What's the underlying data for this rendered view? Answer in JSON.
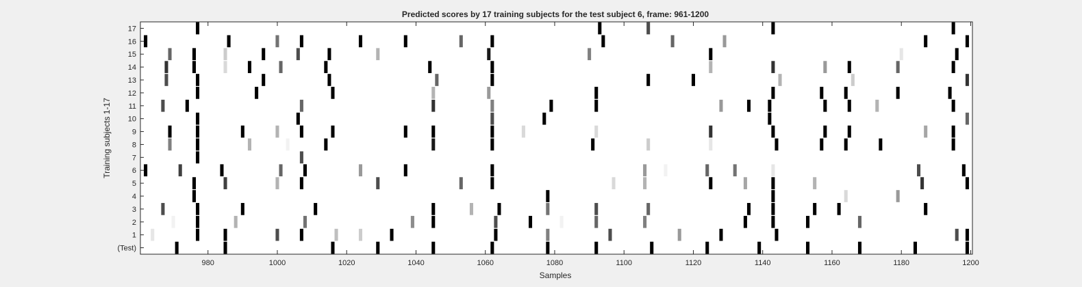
{
  "chart_data": {
    "type": "heatmap",
    "title": "Predicted scores by 17 training subjects for the test subject 6, frame: 961-1200",
    "xlabel": "Samples",
    "ylabel": "Training subjects 1-17",
    "xlim": [
      961,
      1200
    ],
    "xticks": [
      980,
      1000,
      1020,
      1040,
      1060,
      1080,
      1100,
      1120,
      1140,
      1160,
      1180,
      1200
    ],
    "rows": [
      "(Test)",
      "1",
      "2",
      "3",
      "4",
      "5",
      "6",
      "7",
      "8",
      "9",
      "10",
      "11",
      "12",
      "13",
      "14",
      "15",
      "16",
      "17"
    ],
    "colormap": "grayscale (white = 0, black = 1)",
    "grid": false,
    "marks": [
      [
        [
          971,
          1
        ],
        [
          985,
          1
        ],
        [
          1016,
          1
        ],
        [
          1029,
          1
        ],
        [
          1045,
          1
        ],
        [
          1062,
          1
        ],
        [
          1078,
          1
        ],
        [
          1092,
          1
        ],
        [
          1108,
          1
        ],
        [
          1124,
          1
        ],
        [
          1139,
          1
        ],
        [
          1153,
          1
        ],
        [
          1168,
          1
        ],
        [
          1184,
          1
        ],
        [
          1199,
          1
        ]
      ],
      [
        [
          964,
          0.1
        ],
        [
          977,
          1
        ],
        [
          985,
          1
        ],
        [
          1000,
          0.7
        ],
        [
          1007,
          1
        ],
        [
          1017,
          0.25
        ],
        [
          1024,
          0.2
        ],
        [
          1033,
          1
        ],
        [
          1063,
          1
        ],
        [
          1078,
          0.5
        ],
        [
          1096,
          0.7
        ],
        [
          1116,
          0.4
        ],
        [
          1128,
          1
        ],
        [
          1144,
          1
        ],
        [
          1196,
          0.7
        ],
        [
          1199,
          1
        ]
      ],
      [
        [
          970,
          0.05
        ],
        [
          977,
          1
        ],
        [
          988,
          0.3
        ],
        [
          1008,
          0.55
        ],
        [
          1039,
          0.45
        ],
        [
          1045,
          1
        ],
        [
          1063,
          0.7
        ],
        [
          1073,
          1
        ],
        [
          1082,
          0.05
        ],
        [
          1092,
          0.6
        ],
        [
          1106,
          0.5
        ],
        [
          1135,
          1
        ],
        [
          1143,
          1
        ],
        [
          1153,
          1
        ],
        [
          1168,
          0.6
        ]
      ],
      [
        [
          967,
          0.7
        ],
        [
          977,
          1
        ],
        [
          990,
          1
        ],
        [
          1011,
          1
        ],
        [
          1045,
          1
        ],
        [
          1056,
          0.3
        ],
        [
          1064,
          1
        ],
        [
          1078,
          0.55
        ],
        [
          1092,
          0.7
        ],
        [
          1107,
          0.6
        ],
        [
          1136,
          1
        ],
        [
          1143,
          1
        ],
        [
          1155,
          1
        ],
        [
          1162,
          1
        ],
        [
          1187,
          1
        ]
      ],
      [
        [
          976,
          1
        ],
        [
          1078,
          1
        ],
        [
          1143,
          1
        ],
        [
          1164,
          0.15
        ],
        [
          1179,
          0.4
        ]
      ],
      [
        [
          976,
          1
        ],
        [
          985,
          0.75
        ],
        [
          1000,
          0.3
        ],
        [
          1007,
          1
        ],
        [
          1029,
          0.7
        ],
        [
          1062,
          1
        ],
        [
          1053,
          0.6
        ],
        [
          1097,
          0.15
        ],
        [
          1106,
          0.3
        ],
        [
          1125,
          1
        ],
        [
          1135,
          0.35
        ],
        [
          1143,
          1
        ],
        [
          1155,
          0.3
        ],
        [
          1186,
          0.8
        ],
        [
          1199,
          1
        ]
      ],
      [
        [
          962,
          1
        ],
        [
          972,
          0.75
        ],
        [
          984,
          1
        ],
        [
          1001,
          0.6
        ],
        [
          1008,
          1
        ],
        [
          1024,
          0.4
        ],
        [
          1037,
          1
        ],
        [
          1062,
          1
        ],
        [
          1106,
          0.4
        ],
        [
          1112,
          0.05
        ],
        [
          1124,
          0.6
        ],
        [
          1132,
          0.55
        ],
        [
          1143,
          0.1
        ],
        [
          1185,
          0.7
        ],
        [
          1198,
          1
        ]
      ],
      [
        [
          977,
          1
        ],
        [
          1007,
          0.7
        ]
      ],
      [
        [
          969,
          0.5
        ],
        [
          977,
          1
        ],
        [
          992,
          0.3
        ],
        [
          1003,
          0.05
        ],
        [
          1014,
          1
        ],
        [
          1045,
          0.9
        ],
        [
          1062,
          1
        ],
        [
          1091,
          1
        ],
        [
          1107,
          0.2
        ],
        [
          1125,
          0.1
        ],
        [
          1144,
          1
        ],
        [
          1157,
          1
        ],
        [
          1164,
          1
        ],
        [
          1174,
          1
        ],
        [
          1195,
          1
        ]
      ],
      [
        [
          969,
          1
        ],
        [
          977,
          1
        ],
        [
          990,
          1
        ],
        [
          1000,
          0.3
        ],
        [
          1007,
          1
        ],
        [
          1016,
          1
        ],
        [
          1037,
          1
        ],
        [
          1045,
          1
        ],
        [
          1062,
          1
        ],
        [
          1071,
          0.15
        ],
        [
          1092,
          0.15
        ],
        [
          1125,
          0.8
        ],
        [
          1143,
          1
        ],
        [
          1158,
          1
        ],
        [
          1165,
          1
        ],
        [
          1187,
          0.35
        ],
        [
          1195,
          1
        ]
      ],
      [
        [
          977,
          1
        ],
        [
          1006,
          1
        ],
        [
          1062,
          0.7
        ],
        [
          1077,
          1
        ],
        [
          1142,
          1
        ],
        [
          1199,
          0.6
        ]
      ],
      [
        [
          967,
          0.7
        ],
        [
          974,
          1
        ],
        [
          1007,
          0.6
        ],
        [
          1045,
          0.8
        ],
        [
          1062,
          0.5
        ],
        [
          1079,
          1
        ],
        [
          1092,
          1
        ],
        [
          1128,
          0.4
        ],
        [
          1136,
          1
        ],
        [
          1142,
          1
        ],
        [
          1158,
          1
        ],
        [
          1165,
          1
        ],
        [
          1173,
          0.3
        ],
        [
          1195,
          1
        ]
      ],
      [
        [
          977,
          1
        ],
        [
          994,
          1
        ],
        [
          1016,
          1
        ],
        [
          1045,
          0.3
        ],
        [
          1061,
          0.4
        ],
        [
          1092,
          1
        ],
        [
          1143,
          1
        ],
        [
          1157,
          1
        ],
        [
          1164,
          1
        ],
        [
          1179,
          1
        ],
        [
          1194,
          1
        ]
      ],
      [
        [
          968,
          0.7
        ],
        [
          977,
          1
        ],
        [
          996,
          1
        ],
        [
          1015,
          1
        ],
        [
          1046,
          0.6
        ],
        [
          1062,
          1
        ],
        [
          1107,
          1
        ],
        [
          1120,
          1
        ],
        [
          1145,
          0.3
        ],
        [
          1166,
          0.2
        ],
        [
          1199,
          0.8
        ]
      ],
      [
        [
          968,
          0.8
        ],
        [
          976,
          1
        ],
        [
          985,
          0.15
        ],
        [
          992,
          1
        ],
        [
          1001,
          0.6
        ],
        [
          1014,
          1
        ],
        [
          1044,
          1
        ],
        [
          1062,
          1
        ],
        [
          1125,
          0.3
        ],
        [
          1143,
          0.8
        ],
        [
          1158,
          0.4
        ],
        [
          1165,
          1
        ],
        [
          1179,
          0.6
        ],
        [
          1195,
          1
        ]
      ],
      [
        [
          969,
          0.6
        ],
        [
          976,
          1
        ],
        [
          985,
          0.2
        ],
        [
          996,
          1
        ],
        [
          1006,
          0.7
        ],
        [
          1015,
          1
        ],
        [
          1029,
          0.3
        ],
        [
          1061,
          0.9
        ],
        [
          1090,
          0.5
        ],
        [
          1125,
          1
        ],
        [
          1180,
          0.1
        ],
        [
          1196,
          1
        ]
      ],
      [
        [
          962,
          1
        ],
        [
          986,
          1
        ],
        [
          1000,
          0.55
        ],
        [
          1007,
          1
        ],
        [
          1024,
          1
        ],
        [
          1037,
          1
        ],
        [
          1053,
          0.6
        ],
        [
          1062,
          1
        ],
        [
          1094,
          1
        ],
        [
          1114,
          0.6
        ],
        [
          1129,
          0.4
        ],
        [
          1187,
          1
        ],
        [
          1199,
          1
        ]
      ],
      [
        [
          977,
          1
        ],
        [
          1093,
          1
        ],
        [
          1107,
          0.7
        ],
        [
          1143,
          1
        ],
        [
          1195,
          1
        ]
      ]
    ]
  }
}
